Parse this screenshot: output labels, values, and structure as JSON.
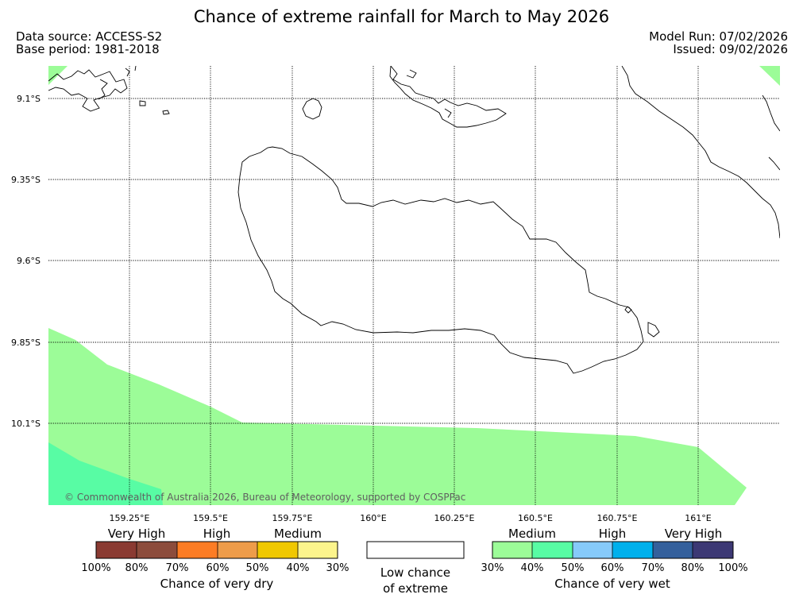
{
  "header": {
    "title": "Chance of extreme rainfall for March to May 2026",
    "data_source": "Data source: ACCESS-S2",
    "base_period": "Base period: 1981-2018",
    "model_run": "Model Run: 07/02/2026",
    "issued": "Issued: 09/02/2026"
  },
  "map": {
    "lat_labels": [
      "9.1°S",
      "9.35°S",
      "9.6°S",
      "9.85°S",
      "10.1°S"
    ],
    "lon_labels": [
      "159.25°E",
      "159.5°E",
      "159.75°E",
      "160°E",
      "160.25°E",
      "160.5°E",
      "160.75°E",
      "161°E"
    ],
    "credit": "© Commonwealth of Australia 2026, Bureau of Meteorology, supported by COSPPac",
    "colors": {
      "medium_wet": "#9cfc98",
      "medium_wet_high": "#58fca4"
    }
  },
  "legend": {
    "dry": {
      "headers": [
        "Very High",
        "High",
        "Medium"
      ],
      "ticks": [
        "100%",
        "80%",
        "70%",
        "60%",
        "50%",
        "40%",
        "30%"
      ],
      "colors": [
        "#8a3a32",
        "#8c4c3c",
        "#fc7c24",
        "#ee9c4a",
        "#f0c800",
        "#fcf48c"
      ],
      "caption": "Chance of very dry"
    },
    "low": {
      "caption_line1": "Low chance",
      "caption_line2": "of extreme"
    },
    "wet": {
      "headers": [
        "Medium",
        "High",
        "Very High"
      ],
      "ticks": [
        "30%",
        "40%",
        "50%",
        "60%",
        "70%",
        "80%",
        "100%"
      ],
      "colors": [
        "#9cfc98",
        "#58fca4",
        "#86cafa",
        "#00b0ec",
        "#34609c",
        "#3c3874"
      ],
      "caption": "Chance of very wet"
    }
  }
}
